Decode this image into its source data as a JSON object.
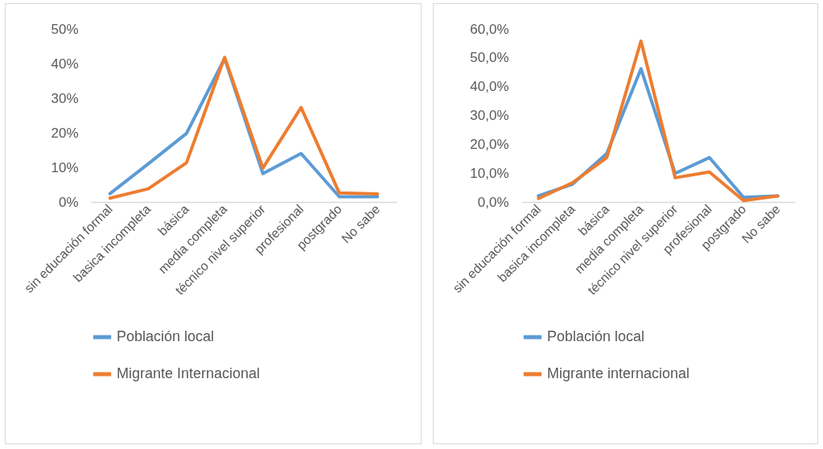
{
  "chart_data": [
    {
      "type": "line",
      "categories": [
        "sin educación formal",
        "basica incompleta",
        "básica",
        "media completa",
        "técnico nivel superior",
        "profesional",
        "postgrado",
        "No sabe"
      ],
      "series": [
        {
          "name": "Población local",
          "color": "#5b9bd5",
          "values": [
            2.4,
            11,
            19.8,
            41.5,
            8.2,
            14,
            1.5,
            1.5
          ]
        },
        {
          "name": "Migrante Internacional",
          "color": "#ed7d31",
          "values": [
            1.1,
            3.8,
            11.3,
            41.8,
            9.8,
            27.3,
            2.6,
            2.3
          ]
        }
      ],
      "ylim": [
        0,
        50
      ],
      "yticks": [
        {
          "value": 0,
          "label": "0%"
        },
        {
          "value": 10,
          "label": "10%"
        },
        {
          "value": 20,
          "label": "20%"
        },
        {
          "value": 30,
          "label": "30%"
        },
        {
          "value": 40,
          "label": "40%"
        },
        {
          "value": 50,
          "label": "50%"
        }
      ],
      "legend": "bottom"
    },
    {
      "type": "line",
      "categories": [
        "sin educación formal",
        "basica incompleta",
        "básica",
        "media completa",
        "técnico nivel superior",
        "profesional",
        "postgrado",
        "No sabe"
      ],
      "series": [
        {
          "name": "Población local",
          "color": "#5b9bd5",
          "values": [
            2.1,
            6.2,
            16.8,
            46.2,
            9.9,
            15.4,
            1.6,
            2.1
          ]
        },
        {
          "name": "Migrante internacional",
          "color": "#ed7d31",
          "values": [
            1.2,
            6.7,
            15.4,
            55.8,
            8.4,
            10.4,
            0.5,
            2.1
          ]
        }
      ],
      "ylim": [
        0,
        60
      ],
      "yticks": [
        {
          "value": 0,
          "label": "0,0%"
        },
        {
          "value": 10,
          "label": "10,0%"
        },
        {
          "value": 20,
          "label": "20,0%"
        },
        {
          "value": 30,
          "label": "30,0%"
        },
        {
          "value": 40,
          "label": "40,0%"
        },
        {
          "value": 50,
          "label": "50,0%"
        },
        {
          "value": 60,
          "label": "60,0%"
        }
      ],
      "legend": "bottom"
    }
  ]
}
